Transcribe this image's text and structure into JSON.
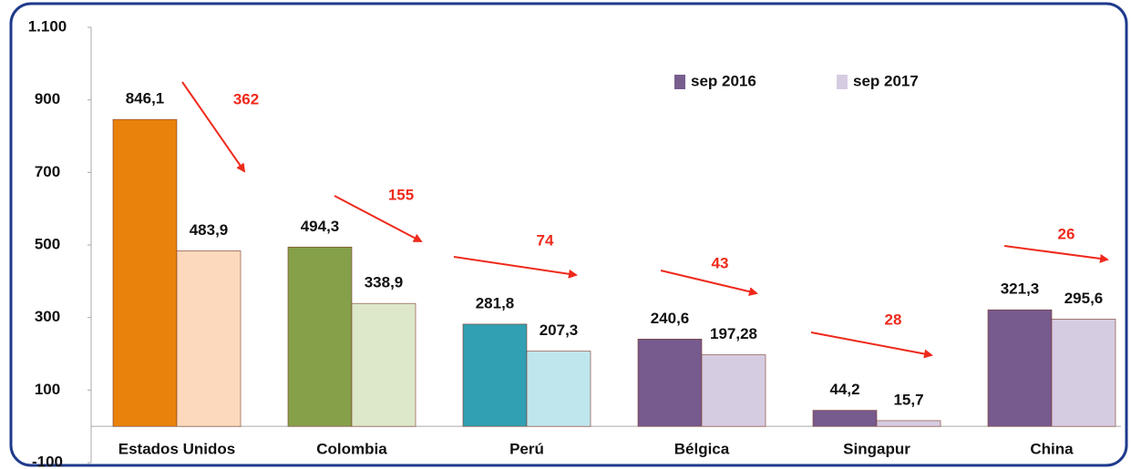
{
  "chart_data": {
    "type": "bar",
    "categories": [
      "Estados Unidos",
      "Colombia",
      "Perú",
      "Bélgica",
      "Singapur",
      "China"
    ],
    "series": [
      {
        "name": "sep 2016",
        "color": "#775e8e",
        "colors": [
          "#e8820c",
          "#86a04a",
          "#31a0b2",
          "#775a8e",
          "#775a8e",
          "#775a8e"
        ],
        "values": [
          846.1,
          494.3,
          281.8,
          240.6,
          44.2,
          321.3
        ],
        "value_labels": [
          "846,1",
          "494,3",
          "281,8",
          "240,6",
          "44,2",
          "321,3"
        ]
      },
      {
        "name": "sep 2017",
        "color": "#d6cce2",
        "colors": [
          "#fcd9bc",
          "#dde8c9",
          "#bfe6ed",
          "#d6cce2",
          "#d6cce2",
          "#d6cce2"
        ],
        "values": [
          483.9,
          338.9,
          207.3,
          197.28,
          15.7,
          295.6
        ],
        "value_labels": [
          "483,9",
          "338,9",
          "207,3",
          "197,28",
          "15,7",
          "295,6"
        ]
      }
    ],
    "annotations": [
      362,
      155,
      74,
      43,
      28,
      26
    ],
    "ylim": [
      -100,
      1100
    ],
    "yticks": [
      -100,
      100,
      300,
      500,
      700,
      900,
      {
        "value": 1100,
        "label": "1.100"
      }
    ],
    "legend": "top-right"
  }
}
